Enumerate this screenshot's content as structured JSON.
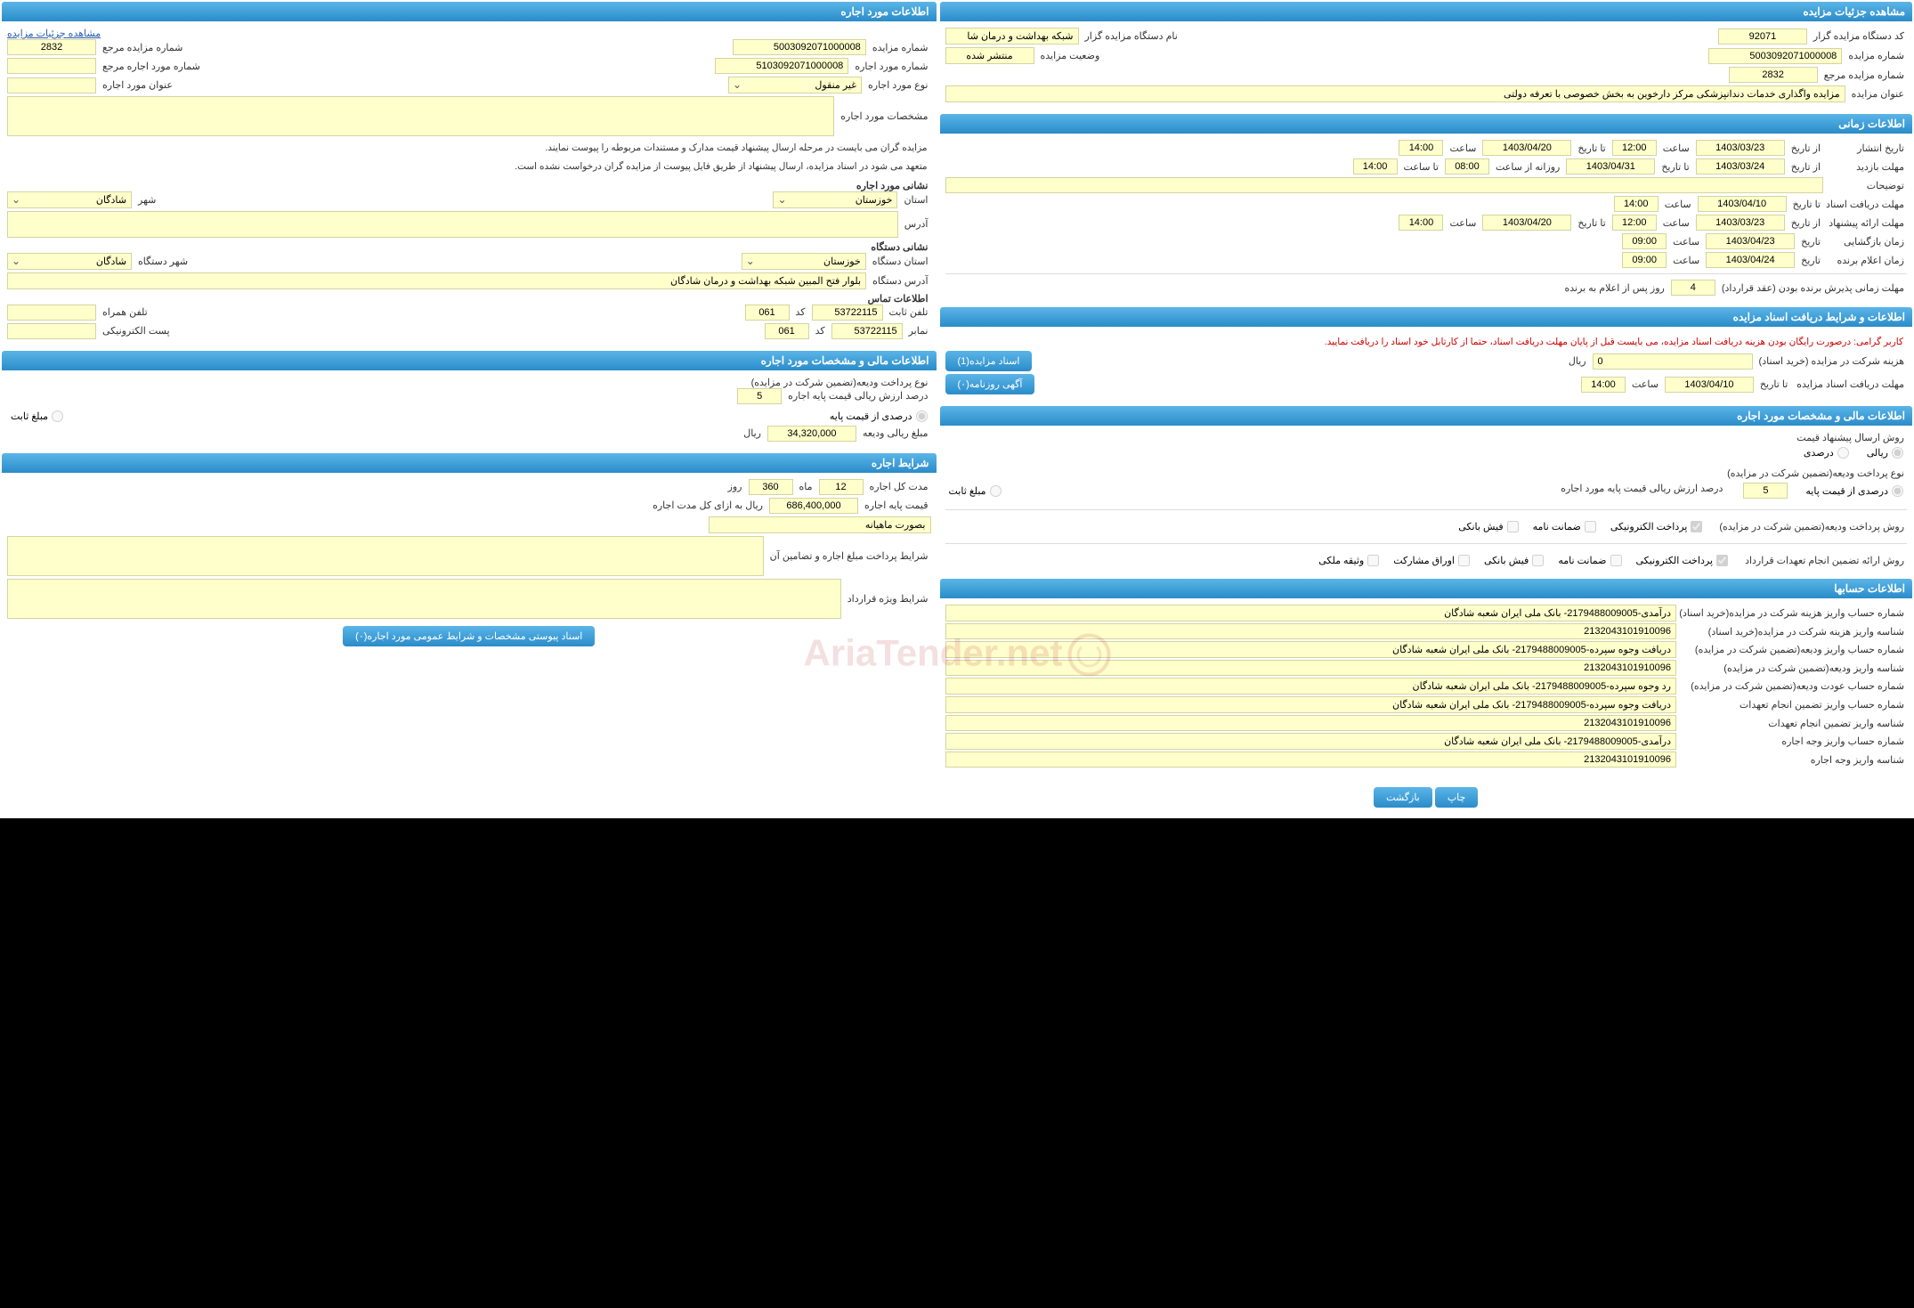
{
  "watermark": "AriaTender.net",
  "right": {
    "sec_details": {
      "title": "مشاهده جزئیات مزایده",
      "code_label": "کد دستگاه مزایده گزار",
      "code": "92071",
      "org_label": "نام دستگاه مزایده گزار",
      "org": "شبکه بهداشت و درمان شا",
      "auction_no_label": "شماره مزایده",
      "auction_no": "5003092071000008",
      "status_label": "وضعیت مزایده",
      "status": "منتشر شده",
      "ref_no_label": "شماره مزایده مرجع",
      "ref_no": "2832",
      "title_label": "عنوان مزایده",
      "auction_title": "مزایده واگذاری خدمات دندانپزشکی مرکز دارخوین به بخش خصوصی با تعرفه دولتی"
    },
    "sec_time": {
      "title": "اطلاعات زمانی",
      "publish_label": "تاریخ انتشار",
      "from_label": "از تاریخ",
      "to_label": "تا تاریخ",
      "hour_label": "ساعت",
      "to_hour_label": "تا ساعت",
      "daily_from_label": "روزانه از ساعت",
      "date_label": "تاریخ",
      "publish_from": "1403/03/23",
      "publish_from_t": "12:00",
      "publish_to": "1403/04/20",
      "publish_to_t": "14:00",
      "visit_label": "مهلت بازدید",
      "visit_from": "1403/03/24",
      "visit_to": "1403/04/31",
      "visit_daily_from": "08:00",
      "visit_daily_to": "14:00",
      "desc_label": "توضیحات",
      "receive_label": "مهلت دریافت اسناد",
      "receive_to": "1403/04/10",
      "receive_t": "14:00",
      "offer_label": "مهلت ارائه پیشنهاد",
      "offer_from": "1403/03/23",
      "offer_from_t": "12:00",
      "offer_to": "1403/04/20",
      "offer_to_t": "14:00",
      "open_label": "زمان بازگشایی",
      "open_date": "1403/04/23",
      "open_t": "09:00",
      "winner_label": "زمان اعلام برنده",
      "winner_date": "1403/04/24",
      "winner_t": "09:00",
      "accept_label": "مهلت زمانی پذیرش برنده بودن (عقد قرارداد)",
      "accept_days": "4",
      "accept_suffix": "روز پس از اعلام به برنده"
    },
    "sec_docs": {
      "title": "اطلاعات و شرایط دریافت اسناد مزایده",
      "warning": "کاربر گرامی: درصورت رایگان بودن هزینه دریافت اسناد مزایده، می بایست قبل از پایان مهلت دریافت اسناد، حتما از کارتابل خود اسناد را دریافت نمایید.",
      "fee_label": "هزینه شرکت در مزایده (خرید اسناد)",
      "fee": "0",
      "rial": "ریال",
      "btn_docs": "اسناد مزایده(1)",
      "deadline_label": "مهلت دریافت اسناد مزایده",
      "deadline_to": "1403/04/10",
      "deadline_t": "14:00",
      "btn_ad": "آگهی روزنامه(۰)"
    },
    "sec_finance": {
      "title": "اطلاعات مالی و مشخصات مورد اجاره",
      "method_label": "روش ارسال پیشنهاد قیمت",
      "opt_rial": "ریالی",
      "opt_pct": "درصدی",
      "deposit_type_label": "نوع پرداخت ودیعه(تضمین شرکت در مزایده)",
      "opt_pct_base": "درصدی از قیمت پایه",
      "opt_fixed": "مبلغ ثابت",
      "pct_label": "درصد ارزش ریالی قیمت پایه مورد اجاره",
      "pct": "5",
      "pay_method_label": "روش پرداخت ودیعه(تضمین شرکت در مزایده)",
      "chk_epay": "پرداخت الکترونیکی",
      "chk_guarantee": "ضمانت نامه",
      "chk_bank": "فیش بانکی",
      "commit_label": "روش ارائه تضمین انجام تعهدات قرارداد",
      "chk_bonds": "اوراق مشارکت",
      "chk_property": "وثیقه ملکی"
    },
    "sec_accounts": {
      "title": "اطلاعات حسابها",
      "rows": [
        {
          "l": "شماره حساب واریز هزینه شرکت در مزایده(خرید اسناد)",
          "v": "درآمدی-2179488009005- بانک ملی ایران شعبه شادگان"
        },
        {
          "l": "شناسه واریز هزینه شرکت در مزایده(خرید اسناد)",
          "v": "2132043101910096"
        },
        {
          "l": "شماره حساب واریز ودیعه(تضمین شرکت در مزایده)",
          "v": "دریافت وجوه سپرده-2179488009005- بانک ملی ایران شعبه شادگان"
        },
        {
          "l": "شناسه واریز ودیعه(تضمین شرکت در مزایده)",
          "v": "2132043101910096"
        },
        {
          "l": "شماره حساب عودت ودیعه(تضمین شرکت در مزایده)",
          "v": "رد وجوه سپرده-2179488009005- بانک ملی ایران شعبه شادگان"
        },
        {
          "l": "شماره حساب واریز تضمین انجام تعهدات",
          "v": "دریافت وجوه سپرده-2179488009005- بانک ملی ایران شعبه شادگان"
        },
        {
          "l": "شناسه واریز تضمین انجام تعهدات",
          "v": "2132043101910096"
        },
        {
          "l": "شماره حساب واریز وجه اجاره",
          "v": "درآمدی-2179488009005- بانک ملی ایران شعبه شادگان"
        },
        {
          "l": "شناسه واریز وجه اجاره",
          "v": "2132043101910096"
        }
      ]
    },
    "btn_print": "چاپ",
    "btn_back": "بازگشت"
  },
  "left": {
    "sec_lease": {
      "title": "اطلاعات مورد اجاره",
      "details_link": "مشاهده جزئیات مزایده",
      "auction_no_label": "شماره مزایده",
      "auction_no": "5003092071000008",
      "ref_no_label": "شماره مزایده مرجع",
      "ref_no": "2832",
      "lease_no_label": "شماره مورد اجاره",
      "lease_no": "5103092071000008",
      "lease_ref_label": "شماره مورد اجاره مرجع",
      "lease_ref": "",
      "type_label": "نوع مورد اجاره",
      "type": "غیر منقول",
      "title_label": "عنوان مورد اجاره",
      "lease_title": "",
      "spec_label": "مشخصات مورد اجاره",
      "note1": "مزایده گران می بایست در مرحله ارسال پیشنهاد قیمت مدارک و مستندات مربوطه را پیوست نمایند.",
      "note2": "متعهد می شود در اسناد مزایده، ارسال پیشنهاد از طریق فایل پیوست از مزایده گران درخواست نشده است.",
      "addr_header": "نشانی مورد اجاره",
      "province_label": "استان",
      "province": "خوزستان",
      "city_label": "شهر",
      "city": "شادگان",
      "addr_label": "آدرس",
      "org_addr_header": "نشانی دستگاه",
      "org_province_label": "استان دستگاه",
      "org_province": "خوزستان",
      "org_city_label": "شهر دستگاه",
      "org_city": "شادگان",
      "org_addr_label": "آدرس دستگاه",
      "org_addr": "بلوار فتح المبین شبکه بهداشت و درمان شادگان",
      "contact_header": "اطلاعات تماس",
      "phone_label": "تلفن ثابت",
      "phone": "53722115",
      "code_label": "کد",
      "phone_code": "061",
      "mobile_label": "تلفن همراه",
      "fax_label": "نمابر",
      "fax": "53722115",
      "fax_code": "061",
      "email_label": "پست الکترونیکی"
    },
    "sec_finance2": {
      "title": "اطلاعات مالی و مشخصات مورد اجاره",
      "deposit_type_label": "نوع پرداخت ودیعه(تضمین شرکت در مزایده)",
      "pct_label": "درصد ارزش ریالی قیمت پایه اجاره",
      "pct": "5",
      "opt_pct_base": "درصدی از قیمت پایه",
      "opt_fixed": "مبلغ ثابت",
      "deposit_amt_label": "مبلغ ریالی ودیعه",
      "deposit_amt": "34,320,000",
      "rial": "ریال"
    },
    "sec_terms": {
      "title": "شرایط اجاره",
      "duration_label": "مدت کل اجاره",
      "months": "12",
      "month_l": "ماه",
      "days": "360",
      "day_l": "روز",
      "base_label": "قیمت پایه اجاره",
      "base": "686,400,000",
      "per_label": "ریال به ازای کل مدت اجاره",
      "monthly_label": "بصورت ماهیانه",
      "pay_terms_label": "شرایط پرداخت مبلغ اجاره و تضامین آن",
      "special_label": "شرایط ویژه قرارداد",
      "btn_attach": "اسناد پیوستی مشخصات و شرایط عمومی مورد اجاره(۰)"
    }
  }
}
